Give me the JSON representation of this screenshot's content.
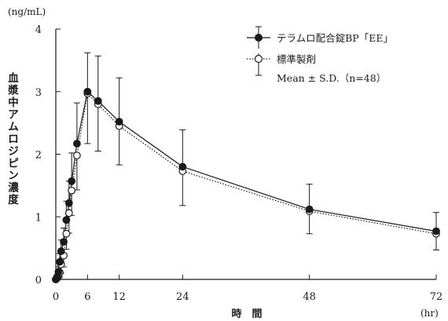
{
  "chart_data": {
    "type": "line",
    "y_unit": "(ng/mL)",
    "x_unit": "(hr)",
    "xlabel": "時　間",
    "ylabel": "血漿中アムロジピン濃度",
    "xlim": [
      0,
      72
    ],
    "ylim": [
      0,
      4
    ],
    "x_ticks": [
      0,
      6,
      12,
      24,
      48,
      72
    ],
    "y_ticks": [
      0,
      1,
      2,
      3,
      4
    ],
    "grid": false,
    "legend_position": "top-right",
    "legend_note": "Mean ± S.D.（n=48）",
    "series": [
      {
        "name": "テラムロ配合錠BP「EE」",
        "marker": "filled-circle",
        "line": "solid",
        "color": "#1a1a1a",
        "x": [
          0,
          0.25,
          0.5,
          0.75,
          1,
          1.5,
          2,
          2.5,
          3,
          4,
          6,
          8,
          12,
          24,
          48,
          72
        ],
        "y": [
          0.0,
          0.04,
          0.12,
          0.28,
          0.45,
          0.6,
          0.95,
          1.22,
          1.57,
          2.17,
          3.0,
          2.85,
          2.52,
          1.8,
          1.12,
          0.77
        ],
        "sd": [
          0.0,
          0.03,
          0.08,
          0.13,
          0.18,
          0.22,
          0.3,
          0.35,
          0.45,
          0.65,
          0.62,
          0.72,
          0.7,
          0.59,
          0.4,
          0.3
        ]
      },
      {
        "name": "標準製剤",
        "marker": "open-circle",
        "line": "dotted",
        "color": "#1a1a1a",
        "x": [
          0,
          0.25,
          0.5,
          0.75,
          1,
          1.5,
          2,
          2.5,
          3,
          4,
          6,
          8,
          12,
          24,
          48,
          72
        ],
        "y": [
          0.0,
          0.02,
          0.06,
          0.11,
          0.24,
          0.38,
          0.73,
          1.06,
          1.42,
          1.98,
          2.97,
          2.8,
          2.45,
          1.73,
          1.09,
          0.73
        ],
        "sd": [
          0.0,
          0.02,
          0.05,
          0.08,
          0.14,
          0.18,
          0.25,
          0.32,
          0.4,
          0.55,
          0.8,
          0.75,
          0.62,
          0.55,
          0.36,
          0.26
        ]
      }
    ]
  }
}
